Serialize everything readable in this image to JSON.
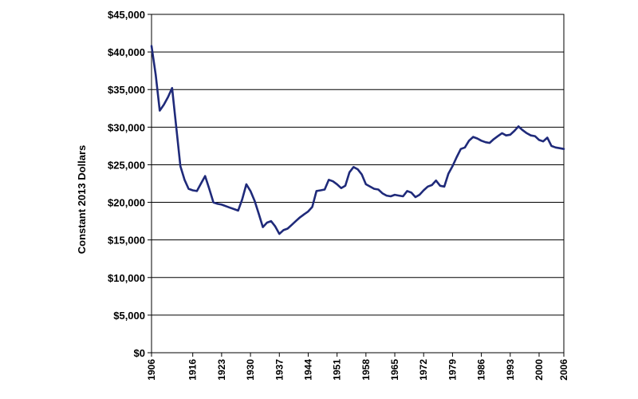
{
  "chart_data": {
    "type": "line",
    "title": "",
    "xlabel": "",
    "ylabel": "Constant 2013 Dollars",
    "xlim": [
      1906,
      2006
    ],
    "ylim": [
      0,
      45000
    ],
    "grid": "horizontal",
    "legend": "none",
    "line_color": "#1f2a7a",
    "y_ticks": [
      {
        "value": 0,
        "label": "$0"
      },
      {
        "value": 5000,
        "label": "$5,000"
      },
      {
        "value": 10000,
        "label": "$10,000"
      },
      {
        "value": 15000,
        "label": "$15,000"
      },
      {
        "value": 20000,
        "label": "$20,000"
      },
      {
        "value": 25000,
        "label": "$25,000"
      },
      {
        "value": 30000,
        "label": "$30,000"
      },
      {
        "value": 35000,
        "label": "$35,000"
      },
      {
        "value": 40000,
        "label": "$40,000"
      },
      {
        "value": 45000,
        "label": "$45,000"
      }
    ],
    "x_ticks": [
      {
        "value": 1906,
        "label": "1906"
      },
      {
        "value": 1916,
        "label": "1916"
      },
      {
        "value": 1923,
        "label": "1923"
      },
      {
        "value": 1930,
        "label": "1930"
      },
      {
        "value": 1937,
        "label": "1937"
      },
      {
        "value": 1944,
        "label": "1944"
      },
      {
        "value": 1951,
        "label": "1951"
      },
      {
        "value": 1958,
        "label": "1958"
      },
      {
        "value": 1965,
        "label": "1965"
      },
      {
        "value": 1972,
        "label": "1972"
      },
      {
        "value": 1979,
        "label": "1979"
      },
      {
        "value": 1986,
        "label": "1986"
      },
      {
        "value": 1993,
        "label": "1993"
      },
      {
        "value": 2000,
        "label": "2000"
      },
      {
        "value": 2006,
        "label": "2006"
      }
    ],
    "x": [
      1906,
      1907,
      1908,
      1909,
      1910,
      1911,
      1912,
      1913,
      1914,
      1915,
      1916,
      1917,
      1918,
      1919,
      1920,
      1921,
      1922,
      1923,
      1924,
      1925,
      1926,
      1927,
      1928,
      1929,
      1930,
      1931,
      1932,
      1933,
      1934,
      1935,
      1936,
      1937,
      1938,
      1939,
      1940,
      1941,
      1942,
      1943,
      1944,
      1945,
      1946,
      1947,
      1948,
      1949,
      1950,
      1951,
      1952,
      1953,
      1954,
      1955,
      1956,
      1957,
      1958,
      1959,
      1960,
      1961,
      1962,
      1963,
      1964,
      1965,
      1966,
      1967,
      1968,
      1969,
      1970,
      1971,
      1972,
      1973,
      1974,
      1975,
      1976,
      1977,
      1978,
      1979,
      1980,
      1981,
      1982,
      1983,
      1984,
      1985,
      1986,
      1987,
      1988,
      1989,
      1990,
      1991,
      1992,
      1993,
      1994,
      1995,
      1996,
      1997,
      1998,
      1999,
      2000,
      2001,
      2002,
      2003,
      2004,
      2005,
      2006
    ],
    "y": [
      40800,
      37000,
      32200,
      33000,
      34000,
      35200,
      30000,
      24800,
      23000,
      21800,
      21600,
      21500,
      22500,
      23500,
      21800,
      20000,
      19800,
      19700,
      19500,
      19300,
      19100,
      18900,
      20400,
      22400,
      21500,
      20200,
      18500,
      16700,
      17300,
      17500,
      16800,
      15800,
      16300,
      16500,
      17000,
      17500,
      18000,
      18400,
      18800,
      19400,
      21500,
      21600,
      21700,
      23000,
      22800,
      22400,
      21900,
      22200,
      24000,
      24700,
      24400,
      23700,
      22400,
      22100,
      21800,
      21700,
      21200,
      20900,
      20800,
      21000,
      20900,
      20800,
      21500,
      21300,
      20700,
      21000,
      21600,
      22100,
      22300,
      22900,
      22200,
      22100,
      23800,
      24800,
      26000,
      27100,
      27300,
      28200,
      28700,
      28500,
      28200,
      28000,
      27900,
      28400,
      28800,
      29200,
      28900,
      29000,
      29500,
      30100,
      29600,
      29200,
      28900,
      28800,
      28300,
      28100,
      28600,
      27500,
      27300,
      27200,
      27100
    ]
  }
}
